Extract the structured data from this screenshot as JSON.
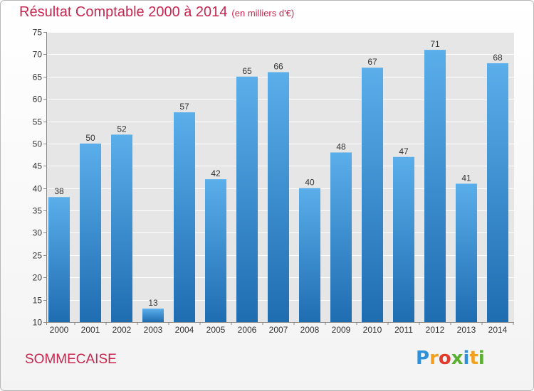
{
  "title": "Résultat Comptable 2000 à 2014",
  "unit": "(en milliers d'€)",
  "commune": "SOMMECAISE",
  "logo": {
    "text": "Proxiti",
    "letters": [
      "P",
      "r",
      "o",
      "x",
      "i",
      "t",
      "i"
    ],
    "colors": [
      "#2f8fd8",
      "#f1a020",
      "#e23c2e",
      "#5ab030",
      "#2f8fd8",
      "#f1a020",
      "#5ab030"
    ]
  },
  "colors": {
    "accent": "#c8264f",
    "bar_light": "#5aaeea",
    "bar_dark": "#1f6db1",
    "plot_bg": "#e6e6e6"
  },
  "chart_data": {
    "type": "bar",
    "title": "Résultat Comptable 2000 à 2014",
    "subtitle": "(en milliers d'€)",
    "categories": [
      "2000",
      "2001",
      "2002",
      "2003",
      "2004",
      "2005",
      "2006",
      "2007",
      "2008",
      "2009",
      "2010",
      "2011",
      "2012",
      "2013",
      "2014"
    ],
    "values": [
      38,
      50,
      52,
      13,
      57,
      42,
      65,
      66,
      40,
      48,
      67,
      47,
      71,
      41,
      68
    ],
    "ylim": [
      10,
      75
    ],
    "yticks": [
      10,
      15,
      20,
      25,
      30,
      35,
      40,
      45,
      50,
      55,
      60,
      65,
      70,
      75
    ],
    "grid": true,
    "data_labels": true
  }
}
